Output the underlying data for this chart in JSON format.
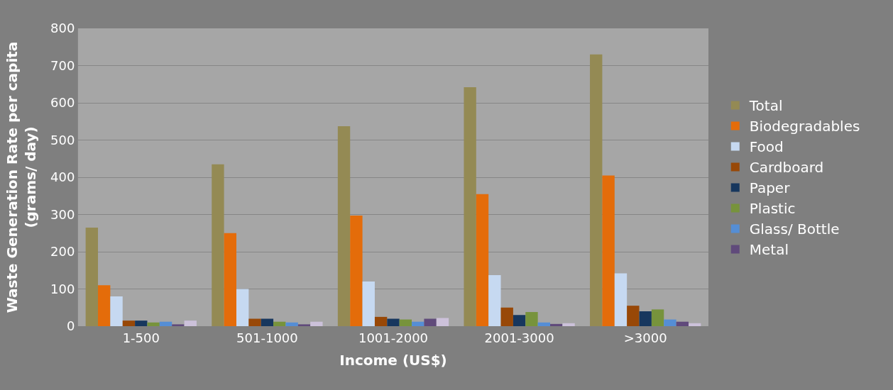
{
  "chart_data": {
    "type": "bar",
    "xlabel": "Income (US$)",
    "ylabel": "Waste Generation Rate per capita\n(grams/ day)",
    "categories": [
      "1-500",
      "501-1000",
      "1001-2000",
      "2001-3000",
      ">3000"
    ],
    "series": [
      {
        "name": "Total",
        "color": "#948a54",
        "values": [
          265,
          435,
          537,
          642,
          730
        ]
      },
      {
        "name": "Biodegradables",
        "color": "#e46c0a",
        "values": [
          110,
          250,
          297,
          355,
          405
        ]
      },
      {
        "name": "Food",
        "color": "#c6d9f1",
        "values": [
          80,
          100,
          120,
          137,
          142
        ]
      },
      {
        "name": "Cardboard",
        "color": "#984807",
        "values": [
          15,
          20,
          25,
          50,
          55
        ]
      },
      {
        "name": "Paper",
        "color": "#17375e",
        "values": [
          15,
          20,
          20,
          30,
          40
        ]
      },
      {
        "name": "Plastic",
        "color": "#77933c",
        "values": [
          10,
          12,
          18,
          38,
          45
        ]
      },
      {
        "name": "Glass/ Bottle",
        "color": "#558ed5",
        "values": [
          12,
          10,
          12,
          10,
          18
        ]
      },
      {
        "name": "Metal",
        "color": "#604a7b",
        "values": [
          5,
          5,
          20,
          6,
          12
        ]
      },
      {
        "color": "#ccc1da",
        "values": [
          15,
          12,
          22,
          8,
          8
        ]
      }
    ],
    "ylim": [
      0,
      800
    ],
    "yticks": [
      0,
      100,
      200,
      300,
      400,
      500,
      600,
      700,
      800
    ],
    "grid": "y",
    "legend": "right"
  }
}
